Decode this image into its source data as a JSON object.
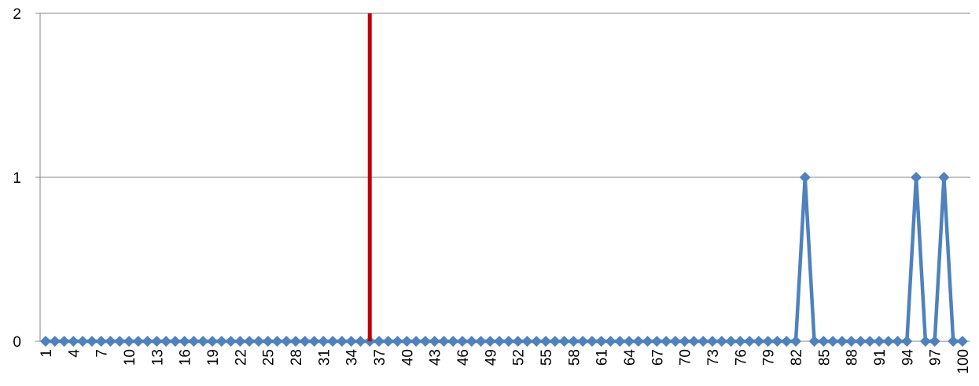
{
  "chart_data": {
    "type": "line",
    "x": [
      1,
      2,
      3,
      4,
      5,
      6,
      7,
      8,
      9,
      10,
      11,
      12,
      13,
      14,
      15,
      16,
      17,
      18,
      19,
      20,
      21,
      22,
      23,
      24,
      25,
      26,
      27,
      28,
      29,
      30,
      31,
      32,
      33,
      34,
      35,
      36,
      37,
      38,
      39,
      40,
      41,
      42,
      43,
      44,
      45,
      46,
      47,
      48,
      49,
      50,
      51,
      52,
      53,
      54,
      55,
      56,
      57,
      58,
      59,
      60,
      61,
      62,
      63,
      64,
      65,
      66,
      67,
      68,
      69,
      70,
      71,
      72,
      73,
      74,
      75,
      76,
      77,
      78,
      79,
      80,
      81,
      82,
      83,
      84,
      85,
      86,
      87,
      88,
      89,
      90,
      91,
      92,
      93,
      94,
      95,
      96,
      97,
      98,
      99,
      100
    ],
    "x_tick_labels": [
      "1",
      "4",
      "7",
      "10",
      "13",
      "16",
      "19",
      "22",
      "25",
      "28",
      "31",
      "34",
      "37",
      "40",
      "43",
      "46",
      "49",
      "52",
      "55",
      "58",
      "61",
      "64",
      "67",
      "70",
      "73",
      "76",
      "79",
      "82",
      "85",
      "88",
      "91",
      "94",
      "97",
      "100"
    ],
    "series": [
      {
        "values": [
          0,
          0,
          0,
          0,
          0,
          0,
          0,
          0,
          0,
          0,
          0,
          0,
          0,
          0,
          0,
          0,
          0,
          0,
          0,
          0,
          0,
          0,
          0,
          0,
          0,
          0,
          0,
          0,
          0,
          0,
          0,
          0,
          0,
          0,
          0,
          0,
          0,
          0,
          0,
          0,
          0,
          0,
          0,
          0,
          0,
          0,
          0,
          0,
          0,
          0,
          0,
          0,
          0,
          0,
          0,
          0,
          0,
          0,
          0,
          0,
          0,
          0,
          0,
          0,
          0,
          0,
          0,
          0,
          0,
          0,
          0,
          0,
          0,
          0,
          0,
          0,
          0,
          0,
          0,
          0,
          0,
          0,
          1,
          0,
          0,
          0,
          0,
          0,
          0,
          0,
          0,
          0,
          0,
          0,
          1,
          0,
          0,
          1,
          0,
          0
        ],
        "color": "#4F81BD",
        "marker": "diamond"
      }
    ],
    "vertical_marker": {
      "x": 36,
      "color": "#C00000"
    },
    "y_ticks": [
      0,
      1,
      2
    ],
    "ylim": [
      0,
      2
    ],
    "xlim": [
      1,
      100
    ],
    "grid": "horizontal",
    "title": "",
    "xlabel": "",
    "ylabel": ""
  }
}
